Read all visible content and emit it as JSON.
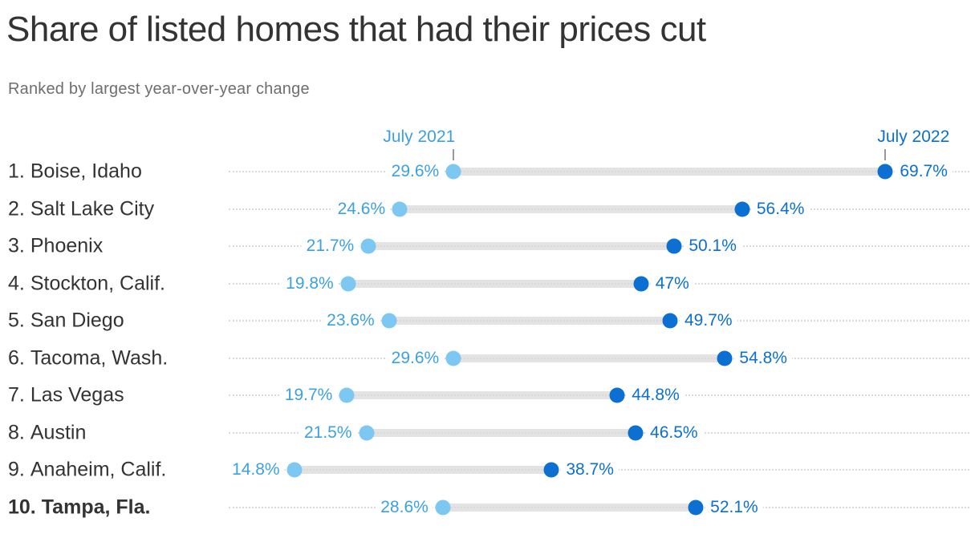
{
  "header": {
    "title": "Share of listed homes that had their prices cut",
    "subtitle": "Ranked by largest year-over-year change"
  },
  "chart_data": {
    "type": "scatter",
    "variant": "dumbbell",
    "title": "Share of listed homes that had their prices cut",
    "subtitle": "Ranked by largest year-over-year change",
    "unit": "%",
    "legend_position": "top",
    "grid": "dotted-leader-lines",
    "x_range_implied": [
      14.8,
      69.7
    ],
    "legend": [
      {
        "label": "July 2021"
      },
      {
        "label": "July 2022"
      }
    ],
    "rows": [
      {
        "rank": "1.",
        "city": "Boise, Idaho",
        "july_2021": 29.6,
        "july_2022": 69.7,
        "label_2021": "29.6%",
        "label_2022": "69.7%",
        "bold": false
      },
      {
        "rank": "2.",
        "city": "Salt Lake City",
        "july_2021": 24.6,
        "july_2022": 56.4,
        "label_2021": "24.6%",
        "label_2022": "56.4%",
        "bold": false
      },
      {
        "rank": "3.",
        "city": "Phoenix",
        "july_2021": 21.7,
        "july_2022": 50.1,
        "label_2021": "21.7%",
        "label_2022": "50.1%",
        "bold": false
      },
      {
        "rank": "4.",
        "city": "Stockton, Calif.",
        "july_2021": 19.8,
        "july_2022": 47,
        "label_2021": "19.8%",
        "label_2022": "47%",
        "bold": false
      },
      {
        "rank": "5.",
        "city": "San Diego",
        "july_2021": 23.6,
        "july_2022": 49.7,
        "label_2021": "23.6%",
        "label_2022": "49.7%",
        "bold": false
      },
      {
        "rank": "6.",
        "city": "Tacoma, Wash.",
        "july_2021": 29.6,
        "july_2022": 54.8,
        "label_2021": "29.6%",
        "label_2022": "54.8%",
        "bold": false
      },
      {
        "rank": "7.",
        "city": "Las Vegas",
        "july_2021": 19.7,
        "july_2022": 44.8,
        "label_2021": "19.7%",
        "label_2022": "44.8%",
        "bold": false
      },
      {
        "rank": "8.",
        "city": "Austin",
        "july_2021": 21.5,
        "july_2022": 46.5,
        "label_2021": "21.5%",
        "label_2022": "46.5%",
        "bold": false
      },
      {
        "rank": "9.",
        "city": "Anaheim, Calif.",
        "july_2021": 14.8,
        "july_2022": 38.7,
        "label_2021": "14.8%",
        "label_2022": "38.7%",
        "bold": false
      },
      {
        "rank": "10.",
        "city": "Tampa, Fla.",
        "july_2021": 28.6,
        "july_2022": 52.1,
        "label_2021": "28.6%",
        "label_2022": "52.1%",
        "bold": true
      }
    ],
    "colors": {
      "dot_2021": "#7cc8f2",
      "dot_2022": "#0b70d1",
      "value_2021_text": "#3ba1e3",
      "value_2022_text": "#0b70d1",
      "legend_2021_text": "#3ba1e3",
      "legend_2022_text": "#0b70d1",
      "connector": "#e3e3e3",
      "gridline": "#d9d9d9",
      "tick": "#9a9a9a",
      "title_text": "#333333",
      "subtitle_text": "#6e6e6e",
      "city_text": "#333333",
      "background": "#ffffff"
    }
  }
}
